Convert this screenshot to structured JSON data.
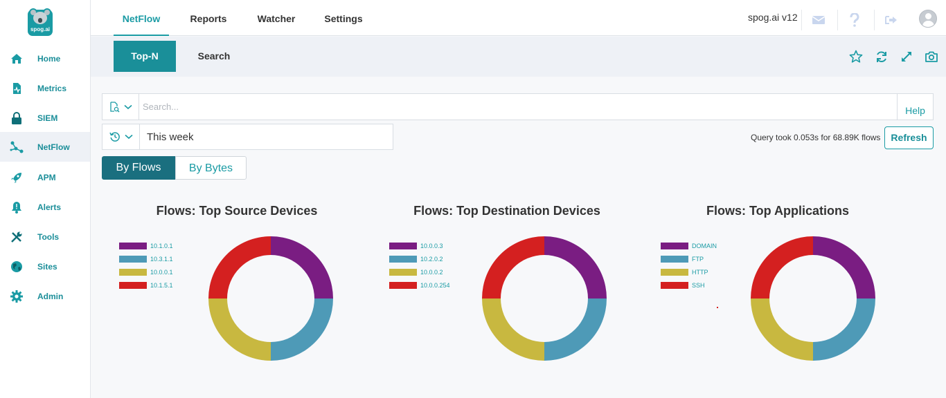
{
  "logo": {
    "brand": "spog.ai"
  },
  "sidebar": {
    "items": [
      {
        "label": "Home",
        "icon": "home-icon"
      },
      {
        "label": "Metrics",
        "icon": "metrics-icon"
      },
      {
        "label": "SIEM",
        "icon": "lock-icon"
      },
      {
        "label": "NetFlow",
        "icon": "netflow-icon"
      },
      {
        "label": "APM",
        "icon": "rocket-icon"
      },
      {
        "label": "Alerts",
        "icon": "bell-icon"
      },
      {
        "label": "Tools",
        "icon": "tools-icon"
      },
      {
        "label": "Sites",
        "icon": "globe-icon"
      },
      {
        "label": "Admin",
        "icon": "gear-icon"
      }
    ],
    "active": "NetFlow"
  },
  "header": {
    "tabs": [
      "NetFlow",
      "Reports",
      "Watcher",
      "Settings"
    ],
    "active_tab": "NetFlow",
    "version": "spog.ai v12",
    "icons": [
      "mail-icon",
      "help-icon",
      "logout-icon",
      "user-avatar"
    ]
  },
  "subnav": {
    "tabs": [
      "Top-N",
      "Search"
    ],
    "active_tab": "Top-N",
    "icons": [
      "star-icon",
      "refresh-icon",
      "expand-icon",
      "camera-icon"
    ]
  },
  "search": {
    "placeholder": "Search...",
    "value": "",
    "help_label": "Help"
  },
  "time_range": {
    "value": "This week"
  },
  "query_info": "Query took 0.053s for 68.89K flows",
  "refresh_label": "Refresh",
  "toggle": {
    "options": [
      "By Flows",
      "By Bytes"
    ],
    "active": "By Flows"
  },
  "colors": {
    "accent": "#1a9ba4",
    "purple": "#7a1d82",
    "blue": "#4e9ab7",
    "olive": "#c8b840",
    "red": "#d42020"
  },
  "chart_data": [
    {
      "type": "pie",
      "title": "Flows: Top Source Devices",
      "categories": [
        "10.1.0.1",
        "10.3.1.1",
        "10.0.0.1",
        "10.1.5.1"
      ],
      "values": [
        25,
        25,
        25,
        25
      ],
      "colors": [
        "#7a1d82",
        "#4e9ab7",
        "#c8b840",
        "#d42020"
      ],
      "legend": "left"
    },
    {
      "type": "pie",
      "title": "Flows: Top Destination Devices",
      "categories": [
        "10.0.0.3",
        "10.2.0.2",
        "10.0.0.2",
        "10.0.0.254"
      ],
      "values": [
        25,
        25,
        25,
        25
      ],
      "colors": [
        "#7a1d82",
        "#4e9ab7",
        "#c8b840",
        "#d42020"
      ],
      "legend": "left"
    },
    {
      "type": "pie",
      "title": "Flows: Top Applications",
      "categories": [
        "DOMAIN",
        "FTP",
        "HTTP",
        "SSH"
      ],
      "values": [
        25,
        25,
        25,
        25
      ],
      "colors": [
        "#7a1d82",
        "#4e9ab7",
        "#c8b840",
        "#d42020"
      ],
      "legend": "left"
    }
  ]
}
